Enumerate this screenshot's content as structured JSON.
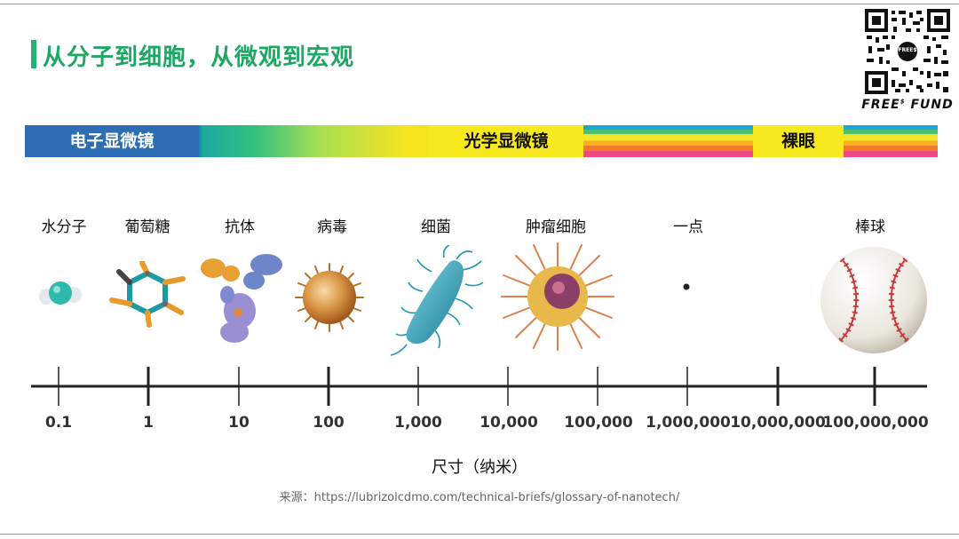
{
  "title": "从分子到细胞，从微观到宏观",
  "brand": {
    "name": "FREE",
    "sup": "$",
    "suffix": " FUND",
    "qr_label": "FREE$"
  },
  "bands": [
    {
      "label": "电子显微镜"
    },
    {
      "label": "光学显微镜"
    },
    {
      "label": "裸眼"
    }
  ],
  "items": [
    {
      "label": "水分子",
      "icon": "water-molecule-icon"
    },
    {
      "label": "葡萄糖",
      "icon": "glucose-molecule-icon"
    },
    {
      "label": "抗体",
      "icon": "antibody-icon"
    },
    {
      "label": "病毒",
      "icon": "virus-icon"
    },
    {
      "label": "细菌",
      "icon": "bacterium-icon"
    },
    {
      "label": "肿瘤细胞",
      "icon": "tumor-cell-icon"
    },
    {
      "label": "一点",
      "icon": "dot-icon"
    },
    {
      "label": "棒球",
      "icon": "baseball-icon"
    }
  ],
  "axis": {
    "ticks": [
      "0.1",
      "1",
      "10",
      "100",
      "1,000",
      "10,000",
      "100,000",
      "1,000,000",
      "10,000,000",
      "100,000,000"
    ],
    "title": "尺寸（纳米）"
  },
  "source": "来源：https://lubrizolcdmo.com/technical-briefs/glossary-of-nanotech/"
}
